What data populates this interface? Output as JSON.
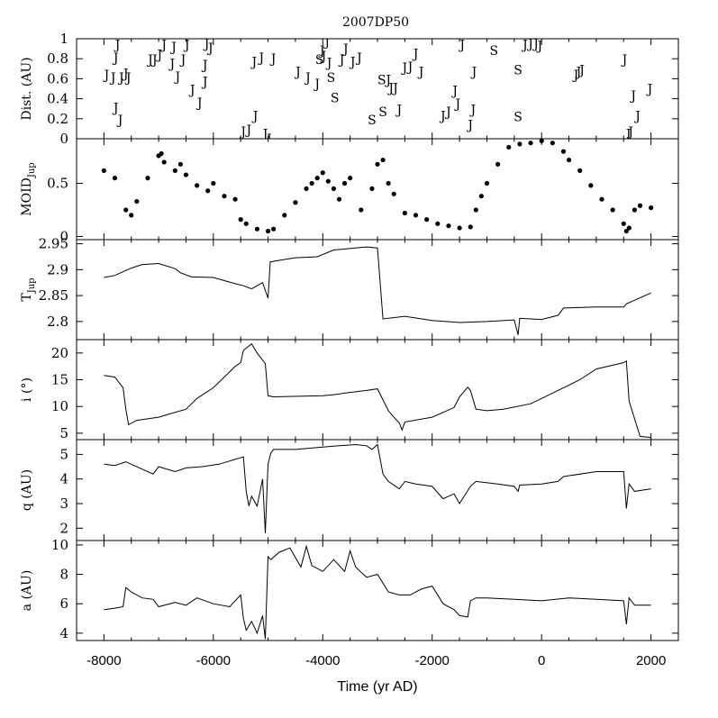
{
  "chart_data": {
    "type": "line",
    "title": "2007DP50",
    "xlabel": "Time (yr AD)",
    "xlim": [
      -8500,
      2500
    ],
    "xticks": [
      -8000,
      -6000,
      -4000,
      -2000,
      0,
      2000
    ],
    "xtick_labels": [
      "-8000",
      "-6000",
      "-4000",
      "-2000",
      "0",
      "2000"
    ],
    "panels": [
      {
        "id": "dist",
        "ylabel": "Dist. (AU)",
        "ylim": [
          0,
          1
        ],
        "yticks": [
          "0",
          "0.2",
          "0.4",
          "0.6",
          "0.8",
          "1"
        ],
        "ytick_values": [
          0,
          0.2,
          0.4,
          0.6,
          0.8,
          1
        ],
        "encounters": [
          {
            "x": -7750,
            "y": 0.95,
            "planet": "J"
          },
          {
            "x": -7780,
            "y": 0.82,
            "planet": "J"
          },
          {
            "x": -7950,
            "y": 0.65,
            "planet": "J"
          },
          {
            "x": -7830,
            "y": 0.62,
            "planet": "J"
          },
          {
            "x": -7680,
            "y": 0.62,
            "planet": "J"
          },
          {
            "x": -7600,
            "y": 0.66,
            "planet": "J"
          },
          {
            "x": -7550,
            "y": 0.62,
            "planet": "J"
          },
          {
            "x": -7780,
            "y": 0.32,
            "planet": "J"
          },
          {
            "x": -7700,
            "y": 0.2,
            "planet": "J"
          },
          {
            "x": -7150,
            "y": 0.8,
            "planet": "J"
          },
          {
            "x": -7070,
            "y": 0.8,
            "planet": "J"
          },
          {
            "x": -6980,
            "y": 0.85,
            "planet": "J"
          },
          {
            "x": -6900,
            "y": 0.95,
            "planet": "J"
          },
          {
            "x": -6750,
            "y": 0.76,
            "planet": "J"
          },
          {
            "x": -6720,
            "y": 0.93,
            "planet": "J"
          },
          {
            "x": -6550,
            "y": 0.8,
            "planet": "J"
          },
          {
            "x": -6480,
            "y": 0.95,
            "planet": "J"
          },
          {
            "x": -6650,
            "y": 0.63,
            "planet": "J"
          },
          {
            "x": -6380,
            "y": 0.5,
            "planet": "J"
          },
          {
            "x": -6250,
            "y": 0.37,
            "planet": "J"
          },
          {
            "x": -6120,
            "y": 0.96,
            "planet": "J"
          },
          {
            "x": -6050,
            "y": 0.92,
            "planet": "J"
          },
          {
            "x": -6150,
            "y": 0.75,
            "planet": "J"
          },
          {
            "x": -6150,
            "y": 0.58,
            "planet": "J"
          },
          {
            "x": -5450,
            "y": 0.08,
            "planet": "J"
          },
          {
            "x": -5350,
            "y": 0.1,
            "planet": "J"
          },
          {
            "x": -5250,
            "y": 0.78,
            "planet": "J"
          },
          {
            "x": -5230,
            "y": 0.24,
            "planet": "J"
          },
          {
            "x": -5120,
            "y": 0.82,
            "planet": "J"
          },
          {
            "x": -5050,
            "y": 0.06,
            "planet": "J"
          },
          {
            "x": -4980,
            "y": 0.01,
            "planet": "J"
          },
          {
            "x": -4900,
            "y": 0.81,
            "planet": "J"
          },
          {
            "x": -4450,
            "y": 0.68,
            "planet": "J"
          },
          {
            "x": -4270,
            "y": 0.62,
            "planet": "J"
          },
          {
            "x": -4100,
            "y": 0.56,
            "planet": "J"
          },
          {
            "x": -4060,
            "y": 0.8,
            "planet": "S"
          },
          {
            "x": -3980,
            "y": 0.84,
            "planet": "J"
          },
          {
            "x": -4010,
            "y": 0.89,
            "planet": "J"
          },
          {
            "x": -3920,
            "y": 0.98,
            "planet": "J"
          },
          {
            "x": -3850,
            "y": 0.62,
            "planet": "S"
          },
          {
            "x": -3880,
            "y": 0.77,
            "planet": "J"
          },
          {
            "x": -3780,
            "y": 0.42,
            "planet": "S"
          },
          {
            "x": -3650,
            "y": 0.8,
            "planet": "J"
          },
          {
            "x": -3580,
            "y": 0.91,
            "planet": "J"
          },
          {
            "x": -3450,
            "y": 0.78,
            "planet": "J"
          },
          {
            "x": -3330,
            "y": 0.82,
            "planet": "J"
          },
          {
            "x": -3100,
            "y": 0.2,
            "planet": "S"
          },
          {
            "x": -2920,
            "y": 0.6,
            "planet": "S"
          },
          {
            "x": -2800,
            "y": 0.6,
            "planet": "J"
          },
          {
            "x": -2900,
            "y": 0.28,
            "planet": "S"
          },
          {
            "x": -2750,
            "y": 0.52,
            "planet": "J"
          },
          {
            "x": -2670,
            "y": 0.52,
            "planet": "J"
          },
          {
            "x": -2600,
            "y": 0.3,
            "planet": "J"
          },
          {
            "x": -2500,
            "y": 0.72,
            "planet": "J"
          },
          {
            "x": -2400,
            "y": 0.73,
            "planet": "J"
          },
          {
            "x": -2300,
            "y": 0.86,
            "planet": "J"
          },
          {
            "x": -2200,
            "y": 0.68,
            "planet": "J"
          },
          {
            "x": -1800,
            "y": 0.24,
            "planet": "J"
          },
          {
            "x": -1700,
            "y": 0.28,
            "planet": "J"
          },
          {
            "x": -1580,
            "y": 0.49,
            "planet": "J"
          },
          {
            "x": -1530,
            "y": 0.36,
            "planet": "J"
          },
          {
            "x": -1450,
            "y": 0.95,
            "planet": "J"
          },
          {
            "x": -1300,
            "y": 0.15,
            "planet": "J"
          },
          {
            "x": -1250,
            "y": 0.3,
            "planet": "J"
          },
          {
            "x": -1230,
            "y": 0.68,
            "planet": "J"
          },
          {
            "x": -870,
            "y": 0.89,
            "planet": "S"
          },
          {
            "x": -430,
            "y": 0.7,
            "planet": "S"
          },
          {
            "x": -430,
            "y": 0.23,
            "planet": "S"
          },
          {
            "x": -300,
            "y": 0.95,
            "planet": "J"
          },
          {
            "x": -200,
            "y": 0.96,
            "planet": "J"
          },
          {
            "x": -100,
            "y": 0.96,
            "planet": "J"
          },
          {
            "x": -30,
            "y": 0.94,
            "planet": "J"
          },
          {
            "x": 630,
            "y": 0.65,
            "planet": "J"
          },
          {
            "x": 680,
            "y": 0.68,
            "planet": "J"
          },
          {
            "x": 740,
            "y": 0.7,
            "planet": "J"
          },
          {
            "x": 1520,
            "y": 0.8,
            "planet": "J"
          },
          {
            "x": 1590,
            "y": 0.06,
            "planet": "J"
          },
          {
            "x": 1630,
            "y": 0.08,
            "planet": "J"
          },
          {
            "x": 1680,
            "y": 0.44,
            "planet": "J"
          },
          {
            "x": 1760,
            "y": 0.24,
            "planet": "J"
          },
          {
            "x": 1980,
            "y": 0.51,
            "planet": "J"
          }
        ]
      },
      {
        "id": "moid",
        "ylabel_main": "MOID",
        "ylabel_sub": "Jup",
        "ylim": [
          -0.03,
          0.92
        ],
        "yticks": [
          "0",
          "0.5"
        ],
        "ytick_values": [
          0,
          0.5
        ],
        "x": [
          -8000,
          -7800,
          -7600,
          -7500,
          -7400,
          -7200,
          -7000,
          -6950,
          -6900,
          -6700,
          -6600,
          -6500,
          -6300,
          -6100,
          -6000,
          -5800,
          -5600,
          -5500,
          -5400,
          -5200,
          -5000,
          -4900,
          -4700,
          -4500,
          -4300,
          -4200,
          -4100,
          -4000,
          -3900,
          -3800,
          -3700,
          -3600,
          -3500,
          -3300,
          -3100,
          -3000,
          -2900,
          -2800,
          -2700,
          -2500,
          -2300,
          -2100,
          -1900,
          -1700,
          -1500,
          -1300,
          -1200,
          -1100,
          -1000,
          -800,
          -600,
          -400,
          -200,
          0,
          200,
          400,
          500,
          700,
          900,
          1100,
          1300,
          1500,
          1550,
          1600,
          1700,
          1800,
          2000
        ],
        "values": [
          0.62,
          0.55,
          0.25,
          0.2,
          0.33,
          0.55,
          0.76,
          0.78,
          0.7,
          0.62,
          0.68,
          0.58,
          0.48,
          0.43,
          0.5,
          0.38,
          0.35,
          0.16,
          0.12,
          0.07,
          0.05,
          0.07,
          0.2,
          0.32,
          0.45,
          0.5,
          0.55,
          0.6,
          0.52,
          0.45,
          0.35,
          0.5,
          0.55,
          0.25,
          0.45,
          0.68,
          0.72,
          0.5,
          0.4,
          0.22,
          0.2,
          0.16,
          0.12,
          0.1,
          0.08,
          0.09,
          0.25,
          0.38,
          0.5,
          0.68,
          0.84,
          0.87,
          0.88,
          0.9,
          0.88,
          0.8,
          0.72,
          0.62,
          0.48,
          0.35,
          0.25,
          0.12,
          0.05,
          0.08,
          0.25,
          0.29,
          0.27
        ]
      },
      {
        "id": "tjup",
        "ylabel_main": "T",
        "ylabel_sub": "Jup",
        "ylim": [
          2.765,
          2.958
        ],
        "yticks": [
          "2.8",
          "2.85",
          "2.9",
          "2.95"
        ],
        "ytick_values": [
          2.8,
          2.85,
          2.9,
          2.95
        ],
        "x": [
          -8000,
          -7800,
          -7500,
          -7300,
          -7000,
          -6700,
          -6600,
          -6400,
          -6000,
          -5600,
          -5450,
          -5300,
          -5100,
          -5000,
          -4960,
          -4800,
          -4500,
          -4100,
          -3800,
          -3600,
          -3200,
          -3000,
          -2900,
          -2500,
          -2000,
          -1500,
          -1000,
          -500,
          -430,
          -400,
          0,
          300,
          400,
          1000,
          1500,
          1550,
          2000
        ],
        "values": [
          2.885,
          2.889,
          2.903,
          2.91,
          2.912,
          2.902,
          2.894,
          2.886,
          2.885,
          2.873,
          2.869,
          2.863,
          2.875,
          2.845,
          2.915,
          2.918,
          2.923,
          2.925,
          2.938,
          2.94,
          2.944,
          2.942,
          2.805,
          2.81,
          2.802,
          2.798,
          2.8,
          2.803,
          2.774,
          2.806,
          2.804,
          2.812,
          2.826,
          2.828,
          2.828,
          2.834,
          2.855
        ]
      },
      {
        "id": "incl",
        "ylabel": "i (°)",
        "ylim": [
          3.8,
          22.5
        ],
        "yticks": [
          "5",
          "10",
          "15",
          "20"
        ],
        "ytick_values": [
          5,
          10,
          15,
          20
        ],
        "x": [
          -8000,
          -7800,
          -7650,
          -7600,
          -7550,
          -7400,
          -7000,
          -6800,
          -6500,
          -6300,
          -6000,
          -5600,
          -5500,
          -5450,
          -5300,
          -5200,
          -5050,
          -5000,
          -4900,
          -4000,
          -3800,
          -3600,
          -3200,
          -3000,
          -2800,
          -2700,
          -2600,
          -2550,
          -2500,
          -2000,
          -1600,
          -1500,
          -1350,
          -1300,
          -1200,
          -1000,
          -700,
          -200,
          200,
          700,
          1000,
          1500,
          1550,
          1600,
          1800,
          2000
        ],
        "values": [
          15.8,
          15.5,
          13.5,
          9.5,
          6.6,
          7.4,
          8.0,
          8.6,
          9.5,
          11.5,
          13.5,
          17.5,
          18.2,
          20.5,
          21.7,
          20.0,
          18.0,
          12.0,
          11.8,
          12.0,
          12.2,
          12.5,
          13.0,
          13.3,
          9.2,
          8.0,
          6.9,
          5.6,
          7.1,
          8.0,
          9.8,
          11.8,
          13.6,
          13.0,
          9.5,
          9.2,
          9.5,
          10.5,
          12.5,
          15.0,
          17.0,
          18.2,
          18.5,
          11.0,
          4.4,
          4.2
        ]
      },
      {
        "id": "q",
        "ylabel": "q (AU)",
        "ylim": [
          1.5,
          5.6
        ],
        "yticks": [
          "2",
          "3",
          "4",
          "5"
        ],
        "ytick_values": [
          2,
          3,
          4,
          5
        ],
        "x": [
          -8000,
          -7800,
          -7600,
          -7500,
          -7300,
          -7100,
          -7000,
          -6700,
          -6500,
          -6200,
          -5900,
          -5600,
          -5450,
          -5400,
          -5350,
          -5300,
          -5200,
          -5100,
          -5050,
          -5000,
          -4950,
          -4900,
          -4500,
          -4000,
          -3700,
          -3400,
          -3200,
          -3100,
          -3000,
          -2900,
          -2800,
          -2600,
          -2500,
          -2300,
          -2000,
          -1800,
          -1600,
          -1500,
          -1300,
          -1200,
          -800,
          -500,
          -430,
          -400,
          0,
          300,
          400,
          1000,
          1500,
          1550,
          1600,
          1700,
          2000
        ],
        "values": [
          4.6,
          4.55,
          4.7,
          4.6,
          4.4,
          4.2,
          4.5,
          4.3,
          4.45,
          4.5,
          4.6,
          4.8,
          4.9,
          3.5,
          2.9,
          3.3,
          2.9,
          4.0,
          1.8,
          4.6,
          5.05,
          5.2,
          5.2,
          5.3,
          5.35,
          5.4,
          5.35,
          5.2,
          5.4,
          4.2,
          3.9,
          3.6,
          3.9,
          3.8,
          3.7,
          3.2,
          3.4,
          3.0,
          3.7,
          3.9,
          3.8,
          3.7,
          3.5,
          3.75,
          3.8,
          3.9,
          4.1,
          4.3,
          4.3,
          2.8,
          3.8,
          3.5,
          3.6
        ]
      },
      {
        "id": "a",
        "ylabel": "a (AU)",
        "ylim": [
          3.5,
          10.3
        ],
        "yticks": [
          "4",
          "6",
          "8",
          "10"
        ],
        "ytick_values": [
          4,
          6,
          8,
          10
        ],
        "x": [
          -8000,
          -7800,
          -7650,
          -7600,
          -7500,
          -7300,
          -7100,
          -7000,
          -6700,
          -6500,
          -6300,
          -6000,
          -5700,
          -5500,
          -5450,
          -5400,
          -5300,
          -5200,
          -5100,
          -5050,
          -5000,
          -4950,
          -4800,
          -4600,
          -4400,
          -4300,
          -4200,
          -4000,
          -3800,
          -3600,
          -3500,
          -3400,
          -3200,
          -3000,
          -2900,
          -2800,
          -2600,
          -2400,
          -2200,
          -2000,
          -1800,
          -1600,
          -1500,
          -1350,
          -1300,
          -1200,
          -1000,
          -500,
          0,
          500,
          1000,
          1500,
          1550,
          1600,
          1700,
          2000
        ],
        "values": [
          5.6,
          5.7,
          5.8,
          7.1,
          6.8,
          6.4,
          6.3,
          5.8,
          6.1,
          5.9,
          6.4,
          6.0,
          5.8,
          6.6,
          5.0,
          4.2,
          4.8,
          4.0,
          5.2,
          3.6,
          9.2,
          9.0,
          9.5,
          9.8,
          8.5,
          9.9,
          8.6,
          8.2,
          9.0,
          8.2,
          9.6,
          8.5,
          7.8,
          8.0,
          7.4,
          6.8,
          6.6,
          6.6,
          7.0,
          7.2,
          6.0,
          5.6,
          5.2,
          5.1,
          6.2,
          6.4,
          6.4,
          6.3,
          6.2,
          6.4,
          6.3,
          6.2,
          4.6,
          6.4,
          5.9,
          5.9
        ]
      }
    ]
  }
}
